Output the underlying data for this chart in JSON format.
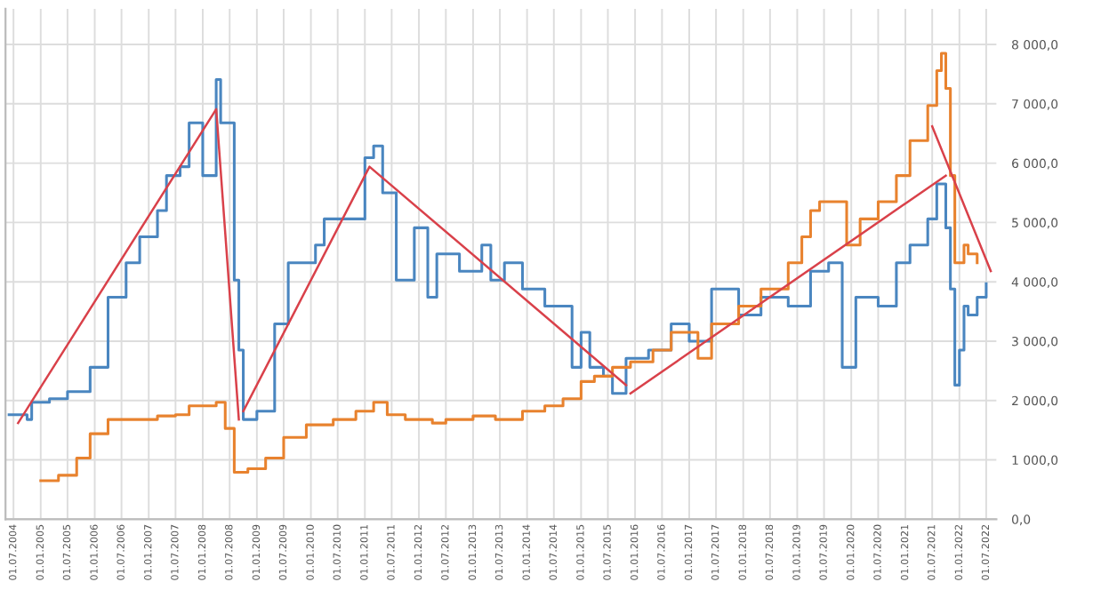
{
  "chart_data": {
    "type": "step",
    "series": [
      {
        "color": "#4a86c0",
        "x": [
          "2004-06",
          "2004-10",
          "2004-11",
          "2005-03",
          "2005-07",
          "2005-12",
          "2006-04",
          "2006-08",
          "2006-11",
          "2007-03",
          "2007-05",
          "2007-08",
          "2007-10",
          "2008-01",
          "2008-04",
          "2008-05",
          "2008-08",
          "2008-09",
          "2008-10",
          "2009-01",
          "2009-05",
          "2009-08",
          "2010-02",
          "2010-04",
          "2010-09",
          "2011-01",
          "2011-03",
          "2011-05",
          "2011-08",
          "2011-12",
          "2012-03",
          "2012-05",
          "2012-10",
          "2013-03",
          "2013-05",
          "2013-08",
          "2013-12",
          "2014-05",
          "2014-11",
          "2015-01",
          "2015-03",
          "2015-06",
          "2015-08",
          "2015-11",
          "2016-04",
          "2016-09",
          "2017-01",
          "2017-06",
          "2017-12",
          "2018-05",
          "2018-11",
          "2019-04",
          "2019-08",
          "2019-11",
          "2020-02",
          "2020-07",
          "2020-11",
          "2021-02",
          "2021-06",
          "2021-08",
          "2021-10",
          "2021-11",
          "2021-12",
          "2022-01",
          "2022-02",
          "2022-03",
          "2022-05",
          "2022-07"
        ],
        "values": [
          1760,
          1680,
          1970,
          2030,
          2150,
          2560,
          3740,
          4320,
          4760,
          5200,
          5790,
          5940,
          6680,
          5790,
          7410,
          6680,
          4030,
          2850,
          1680,
          1820,
          3290,
          4320,
          4620,
          5060,
          5060,
          6090,
          6290,
          5500,
          4030,
          4910,
          3740,
          4470,
          4180,
          4620,
          4030,
          4320,
          3880,
          3590,
          2560,
          3150,
          2560,
          2410,
          2120,
          2710,
          2850,
          3290,
          3000,
          3880,
          3440,
          3740,
          3590,
          4180,
          4320,
          2560,
          3740,
          3590,
          4320,
          4620,
          5060,
          5650,
          4910,
          3880,
          2260,
          2850,
          3590,
          3440,
          3740,
          3970
        ]
      },
      {
        "color": "#e8822e",
        "x": [
          "2005-01",
          "2005-05",
          "2005-09",
          "2005-12",
          "2006-04",
          "2006-09",
          "2007-03",
          "2007-07",
          "2007-10",
          "2008-04",
          "2008-06",
          "2008-08",
          "2008-11",
          "2009-03",
          "2009-07",
          "2009-12",
          "2010-06",
          "2010-11",
          "2011-03",
          "2011-06",
          "2011-10",
          "2012-04",
          "2012-07",
          "2013-01",
          "2013-06",
          "2013-12",
          "2014-05",
          "2014-09",
          "2015-01",
          "2015-04",
          "2015-08",
          "2015-12",
          "2016-05",
          "2016-09",
          "2017-03",
          "2017-06",
          "2017-12",
          "2018-05",
          "2018-11",
          "2019-02",
          "2019-04",
          "2019-06",
          "2019-12",
          "2020-03",
          "2020-07",
          "2020-11",
          "2021-02",
          "2021-06",
          "2021-08",
          "2021-09",
          "2021-10",
          "2021-11",
          "2021-12",
          "2022-02",
          "2022-03",
          "2022-05"
        ],
        "values": [
          650,
          740,
          1030,
          1440,
          1680,
          1680,
          1740,
          1760,
          1910,
          1970,
          1530,
          790,
          850,
          1030,
          1380,
          1590,
          1680,
          1820,
          1970,
          1760,
          1680,
          1620,
          1680,
          1740,
          1680,
          1820,
          1910,
          2030,
          2320,
          2410,
          2560,
          2650,
          2850,
          3150,
          2710,
          3290,
          3590,
          3880,
          4320,
          4760,
          5200,
          5350,
          4620,
          5060,
          5350,
          5790,
          6380,
          6970,
          7560,
          7850,
          7260,
          5790,
          4320,
          4620,
          4470,
          4320
        ]
      },
      {
        "type": "line",
        "color": "#d9414a",
        "x": [
          "2004-08",
          "2008-04",
          "2008-09"
        ],
        "values": [
          1620,
          6910,
          1680
        ]
      },
      {
        "type": "line",
        "color": "#d9414a",
        "x": [
          "2008-10",
          "2011-02",
          "2015-11"
        ],
        "values": [
          1820,
          5940,
          2260
        ]
      },
      {
        "type": "line",
        "color": "#d9414a",
        "x": [
          "2015-12",
          "2021-10"
        ],
        "values": [
          2120,
          5790
        ]
      },
      {
        "type": "line",
        "color": "#d9414a",
        "x": [
          "2021-07",
          "2022-08"
        ],
        "values": [
          6620,
          4180
        ]
      }
    ],
    "xlim": [
      "2004-05-08",
      "2022-09-08"
    ],
    "xticks": [
      {
        "value": "2004-07-01",
        "label": "01.07.2004"
      },
      {
        "value": "2005-01-01",
        "label": "01.01.2005"
      },
      {
        "value": "2005-07-01",
        "label": "01.07.2005"
      },
      {
        "value": "2006-01-01",
        "label": "01.01.2006"
      },
      {
        "value": "2006-07-01",
        "label": "01.07.2006"
      },
      {
        "value": "2007-01-01",
        "label": "01.01.2007"
      },
      {
        "value": "2007-07-01",
        "label": "01.07.2007"
      },
      {
        "value": "2008-01-01",
        "label": "01.01.2008"
      },
      {
        "value": "2008-07-01",
        "label": "01.07.2008"
      },
      {
        "value": "2009-01-01",
        "label": "01.01.2009"
      },
      {
        "value": "2009-07-01",
        "label": "01.07.2009"
      },
      {
        "value": "2010-01-01",
        "label": "01.01.2010"
      },
      {
        "value": "2010-07-01",
        "label": "01.07.2010"
      },
      {
        "value": "2011-01-01",
        "label": "01.01.2011"
      },
      {
        "value": "2011-07-01",
        "label": "01.07.2011"
      },
      {
        "value": "2012-01-01",
        "label": "01.01.2012"
      },
      {
        "value": "2012-07-01",
        "label": "01.07.2012"
      },
      {
        "value": "2013-01-01",
        "label": "01.01.2013"
      },
      {
        "value": "2013-07-01",
        "label": "01.07.2013"
      },
      {
        "value": "2014-01-01",
        "label": "01.01.2014"
      },
      {
        "value": "2014-07-01",
        "label": "01.07.2014"
      },
      {
        "value": "2015-01-01",
        "label": "01.01.2015"
      },
      {
        "value": "2015-07-01",
        "label": "01.07.2015"
      },
      {
        "value": "2016-01-01",
        "label": "01.01.2016"
      },
      {
        "value": "2016-07-01",
        "label": "01.07.2016"
      },
      {
        "value": "2017-01-01",
        "label": "01.01.2017"
      },
      {
        "value": "2017-07-01",
        "label": "01.07.2017"
      },
      {
        "value": "2018-01-01",
        "label": "01.01.2018"
      },
      {
        "value": "2018-07-01",
        "label": "01.07.2018"
      },
      {
        "value": "2019-01-01",
        "label": "01.01.2019"
      },
      {
        "value": "2019-07-01",
        "label": "01.07.2019"
      },
      {
        "value": "2020-01-01",
        "label": "01.01.2020"
      },
      {
        "value": "2020-07-01",
        "label": "01.07.2020"
      },
      {
        "value": "2021-01-01",
        "label": "01.01.2021"
      },
      {
        "value": "2021-07-01",
        "label": "01.07.2021"
      },
      {
        "value": "2022-01-01",
        "label": "01.01.2022"
      },
      {
        "value": "2022-07-01",
        "label": "01.07.2022"
      }
    ],
    "ylim": [
      0,
      8600
    ],
    "yticks": [
      {
        "value": 0,
        "label": "0,0"
      },
      {
        "value": 1000,
        "label": "1 000,0"
      },
      {
        "value": 2000,
        "label": "2 000,0"
      },
      {
        "value": 3000,
        "label": "3 000,0"
      },
      {
        "value": 4000,
        "label": "4 000,0"
      },
      {
        "value": 5000,
        "label": "5 000,0"
      },
      {
        "value": 6000,
        "label": "6 000,0"
      },
      {
        "value": 7000,
        "label": "7 000,0"
      },
      {
        "value": 8000,
        "label": "8 000,0"
      }
    ],
    "grid": true
  }
}
